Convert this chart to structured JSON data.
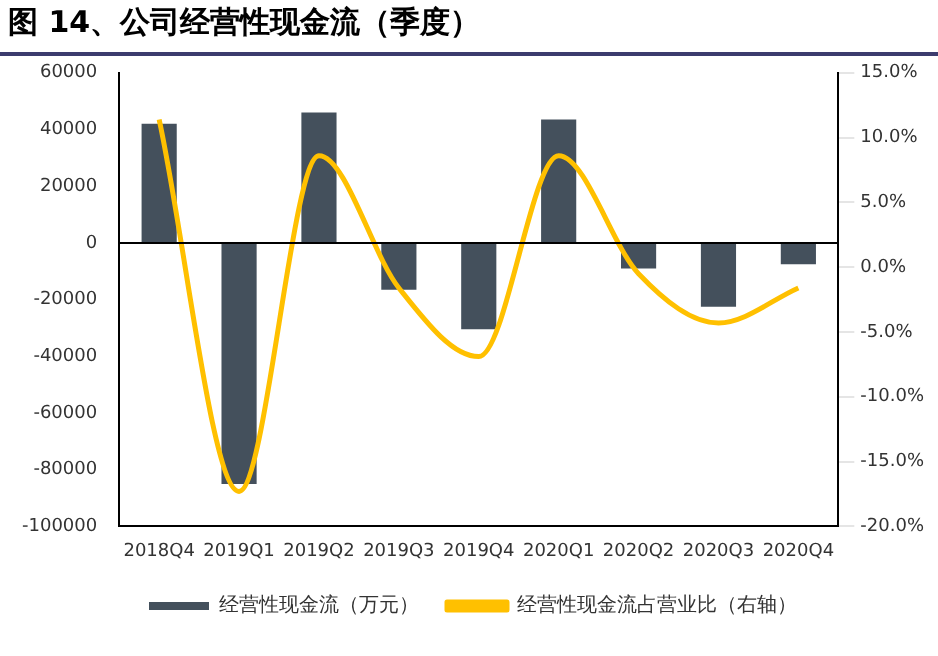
{
  "chart_data": {
    "type": "bar",
    "title": "图 14、公司经营性现金流（季度）",
    "categories": [
      "2018Q4",
      "2019Q1",
      "2019Q2",
      "2019Q3",
      "2019Q4",
      "2020Q1",
      "2020Q2",
      "2020Q3",
      "2020Q4"
    ],
    "series": [
      {
        "name": "经营性现金流（万元）",
        "color": "#44505c",
        "values": [
          42000,
          -85000,
          46000,
          -16500,
          -30500,
          43500,
          -9000,
          -22500,
          -7500
        ]
      },
      {
        "name": "经营性现金流占营业比（右轴）",
        "type": "line",
        "axis": "y2",
        "color": "#ffc000",
        "values": [
          11.4,
          -17.3,
          8.6,
          -1.6,
          -6.9,
          8.6,
          -0.5,
          -4.3,
          -1.6
        ]
      }
    ],
    "ylim": [
      -100000,
      60000
    ],
    "yticks": [
      -100000,
      -80000,
      -60000,
      -40000,
      -20000,
      0,
      20000,
      40000,
      60000
    ],
    "y2lim": [
      -20,
      15
    ],
    "y2ticks": [
      {
        "value": -20,
        "label": "-20.0%"
      },
      {
        "value": -15,
        "label": "-15.0%"
      },
      {
        "value": -10,
        "label": "-10.0%"
      },
      {
        "value": -5,
        "label": "-5.0%"
      },
      {
        "value": 0,
        "label": "0.0%"
      },
      {
        "value": 5,
        "label": "5.0%"
      },
      {
        "value": 10,
        "label": "10.0%"
      },
      {
        "value": 15,
        "label": "15.0%"
      }
    ],
    "legend": "bottom"
  }
}
